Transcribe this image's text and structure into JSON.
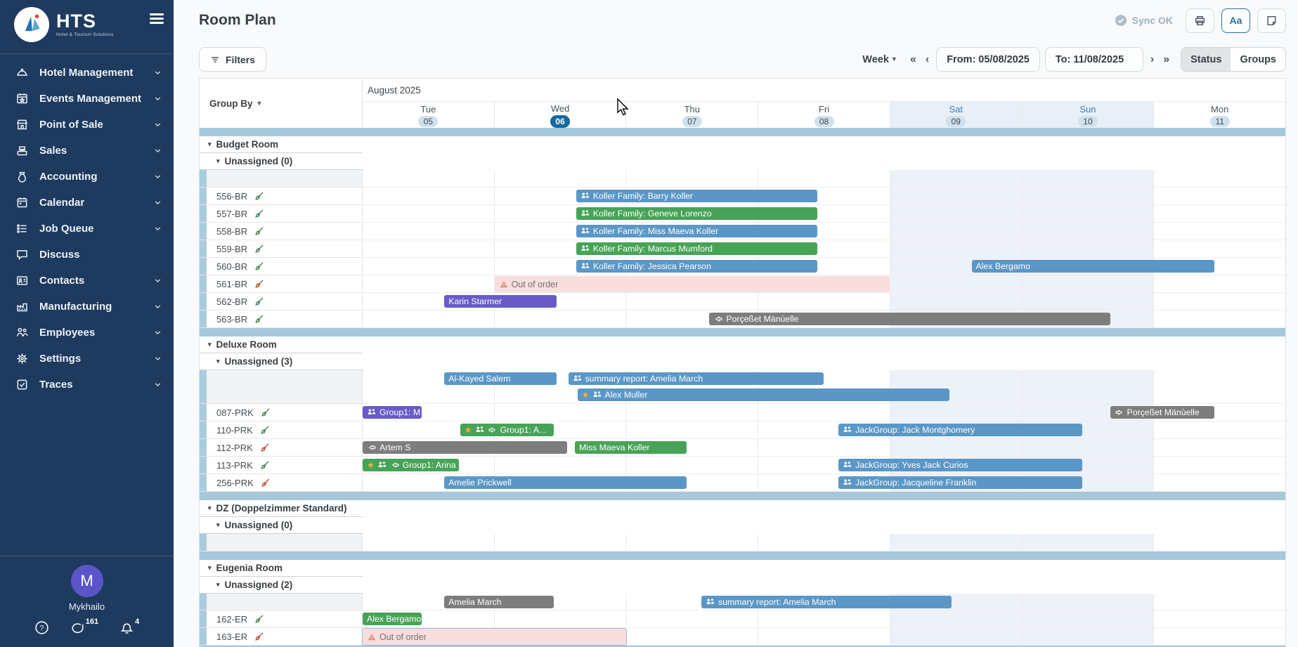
{
  "sidebar": {
    "logo": {
      "title": "HTS",
      "subtitle": "Hotel & Tourism Solutions"
    },
    "items": [
      {
        "id": "hotel-management",
        "label": "Hotel Management",
        "icon": "cloche",
        "chevron": true
      },
      {
        "id": "events-management",
        "label": "Events Management",
        "icon": "calendar-star",
        "chevron": true
      },
      {
        "id": "point-of-sale",
        "label": "Point of Sale",
        "icon": "storefront",
        "chevron": true
      },
      {
        "id": "sales",
        "label": "Sales",
        "icon": "cash-register",
        "chevron": true
      },
      {
        "id": "accounting",
        "label": "Accounting",
        "icon": "money-bag",
        "chevron": true
      },
      {
        "id": "calendar",
        "label": "Calendar",
        "icon": "calendar",
        "chevron": true
      },
      {
        "id": "job-queue",
        "label": "Job Queue",
        "icon": "list",
        "chevron": true
      },
      {
        "id": "discuss",
        "label": "Discuss",
        "icon": "chat",
        "chevron": false
      },
      {
        "id": "contacts",
        "label": "Contacts",
        "icon": "id-card",
        "chevron": true
      },
      {
        "id": "manufacturing",
        "label": "Manufacturing",
        "icon": "factory",
        "chevron": true
      },
      {
        "id": "employees",
        "label": "Employees",
        "icon": "people",
        "chevron": true
      },
      {
        "id": "settings",
        "label": "Settings",
        "icon": "gear",
        "chevron": true
      },
      {
        "id": "traces",
        "label": "Traces",
        "icon": "checkbox",
        "chevron": true
      }
    ],
    "user": {
      "initial": "M",
      "name": "Mykhailo"
    },
    "footer": {
      "chat_count": "161",
      "bell_count": "4"
    }
  },
  "header": {
    "title": "Room Plan",
    "sync_label": "Sync OK",
    "text_size_label": "Aa"
  },
  "toolbar": {
    "filters_label": "Filters",
    "week_label": "Week",
    "prev_fast": "«",
    "prev": "‹",
    "next": "›",
    "next_fast": "»",
    "from_value": "From: 05/08/2025",
    "to_value": "To: 11/08/2025",
    "status_label": "Status",
    "groups_label": "Groups"
  },
  "grid": {
    "month_label": "August 2025",
    "group_by_label": "Group By",
    "days": [
      {
        "name": "Tue",
        "num": "05"
      },
      {
        "name": "Wed",
        "num": "06",
        "today": true
      },
      {
        "name": "Thu",
        "num": "07"
      },
      {
        "name": "Fri",
        "num": "08"
      },
      {
        "name": "Sat",
        "num": "09",
        "weekend": true
      },
      {
        "name": "Sun",
        "num": "10",
        "weekend": true
      },
      {
        "name": "Mon",
        "num": "11"
      }
    ],
    "sections": [
      {
        "name": "Budget Room",
        "unassigned_label": "Unassigned (0)",
        "unassigned_lines": [
          []
        ],
        "rooms": [
          {
            "label": "556-BR",
            "status": "clean",
            "bars": [
              {
                "label": "Koller Family: Barry Koller",
                "color": "blue",
                "icons": [
                  "group"
                ],
                "start": 1.62,
                "end": 3.45
              }
            ]
          },
          {
            "label": "557-BR",
            "status": "clean",
            "bars": [
              {
                "label": "Koller Family: Geneve Lorenzo",
                "color": "green",
                "icons": [
                  "group"
                ],
                "start": 1.62,
                "end": 3.45
              }
            ]
          },
          {
            "label": "558-BR",
            "status": "clean",
            "bars": [
              {
                "label": "Koller Family: Miss Maeva Koller",
                "color": "blue",
                "icons": [
                  "group"
                ],
                "start": 1.62,
                "end": 3.45
              }
            ]
          },
          {
            "label": "559-BR",
            "status": "clean",
            "bars": [
              {
                "label": "Koller Family: Marcus Mumford",
                "color": "green",
                "icons": [
                  "group"
                ],
                "start": 1.62,
                "end": 3.45
              }
            ]
          },
          {
            "label": "560-BR",
            "status": "clean",
            "bars": [
              {
                "label": "Koller Family: Jessica Pearson",
                "color": "blue",
                "icons": [
                  "group"
                ],
                "start": 1.62,
                "end": 3.45
              },
              {
                "label": "Alex Bergamo",
                "color": "blue",
                "icons": [],
                "start": 4.62,
                "end": 6.46
              }
            ]
          },
          {
            "label": "561-BR",
            "status": "dirty",
            "bars": [
              {
                "label": "Out of order",
                "color": "pink",
                "icons": [
                  "warning"
                ],
                "start": 1.0,
                "end": 4.0
              }
            ]
          },
          {
            "label": "562-BR",
            "status": "clean",
            "bars": [
              {
                "label": "Karin Starmer",
                "color": "purple",
                "icons": [],
                "start": 0.62,
                "end": 1.47
              }
            ]
          },
          {
            "label": "563-BR",
            "status": "clean",
            "bars": [
              {
                "label": "Porçeßet Mänùelle",
                "color": "gray",
                "icons": [
                  "arrow-left"
                ],
                "start": 2.63,
                "end": 5.67
              }
            ]
          }
        ]
      },
      {
        "name": "Deluxe Room",
        "unassigned_label": "Unassigned (3)",
        "unassigned_lines": [
          [
            {
              "label": "Al-Kayed Salem",
              "color": "blue",
              "icons": [],
              "start": 0.62,
              "end": 1.47
            },
            {
              "label": "summary report: Amelia March",
              "color": "blue",
              "icons": [
                "group"
              ],
              "start": 1.56,
              "end": 3.5
            }
          ],
          [
            {
              "label": "Alex Muller",
              "color": "blue",
              "icons": [
                "star",
                "group"
              ],
              "start": 1.63,
              "end": 4.45
            }
          ]
        ],
        "rooms": [
          {
            "label": "087-PRK",
            "status": "clean",
            "bars": [
              {
                "label": "Group1: M",
                "color": "purple",
                "icons": [
                  "group"
                ],
                "start": 0,
                "end": 0.45
              },
              {
                "label": "Porçeßet Mänùelle",
                "color": "gray",
                "icons": [
                  "arrow-right"
                ],
                "start": 5.67,
                "end": 6.46
              }
            ]
          },
          {
            "label": "110-PRK",
            "status": "clean",
            "bars": [
              {
                "label": "Group1: A...",
                "color": "green",
                "icons": [
                  "star",
                  "group",
                  "arrow-right"
                ],
                "start": 0.74,
                "end": 1.45
              },
              {
                "label": "JackGroup: Jack Montghomery",
                "color": "blue",
                "icons": [
                  "group"
                ],
                "start": 3.61,
                "end": 5.46
              }
            ]
          },
          {
            "label": "112-PRK",
            "status": "dirty",
            "bars": [
              {
                "label": "Artem S",
                "color": "gray",
                "icons": [
                  "arrow-left"
                ],
                "start": 0,
                "end": 1.55
              },
              {
                "label": "Miss Maeva Koller",
                "color": "green",
                "icons": [],
                "start": 1.61,
                "end": 2.46
              }
            ]
          },
          {
            "label": "113-PRK",
            "status": "clean",
            "bars": [
              {
                "label": "Group1: Arina",
                "color": "green",
                "icons": [
                  "star",
                  "group",
                  "arrow-left"
                ],
                "start": 0,
                "end": 0.73
              },
              {
                "label": "JackGroup: Yves Jack Curios",
                "color": "blue",
                "icons": [
                  "group"
                ],
                "start": 3.61,
                "end": 5.46
              }
            ]
          },
          {
            "label": "256-PRK",
            "status": "dirty",
            "bars": [
              {
                "label": "Amelie Prickwell",
                "color": "blue",
                "icons": [],
                "start": 0.62,
                "end": 2.46
              },
              {
                "label": "JackGroup: Jacqueline Franklin",
                "color": "blue",
                "icons": [
                  "group"
                ],
                "start": 3.61,
                "end": 5.46
              }
            ]
          }
        ]
      },
      {
        "name": "DZ (Doppelzimmer Standard)",
        "unassigned_label": "Unassigned (0)",
        "unassigned_lines": [
          []
        ],
        "rooms": []
      },
      {
        "name": "Eugenia Room",
        "unassigned_label": "Unassigned (2)",
        "unassigned_lines": [
          [
            {
              "label": "Amelia March",
              "color": "gray",
              "icons": [],
              "start": 0.62,
              "end": 1.45
            },
            {
              "label": "summary report: Amelia March",
              "color": "blue",
              "icons": [
                "group"
              ],
              "start": 2.57,
              "end": 4.47
            }
          ]
        ],
        "rooms": [
          {
            "label": "162-ER",
            "status": "clean",
            "bars": [
              {
                "label": "Alex Bergamo",
                "color": "green",
                "icons": [],
                "start": 0,
                "end": 0.45
              }
            ]
          },
          {
            "label": "163-ER",
            "status": "dirty",
            "bars": [
              {
                "label": "Out of order",
                "color": "pink",
                "icons": [
                  "warning"
                ],
                "start": 0,
                "end": 2.0,
                "highlight": true
              }
            ]
          }
        ]
      }
    ]
  },
  "colors": {
    "sidebar_bg": "#1e3a5f",
    "accent_blue": "#17699e",
    "band": "#a6c8dd",
    "bar_blue": "#5b97c6",
    "bar_green": "#47a357",
    "bar_purple": "#685bc7",
    "bar_gray": "#7d7d7d",
    "bar_pink": "#f8dedd",
    "avatar": "#5b55c9"
  }
}
